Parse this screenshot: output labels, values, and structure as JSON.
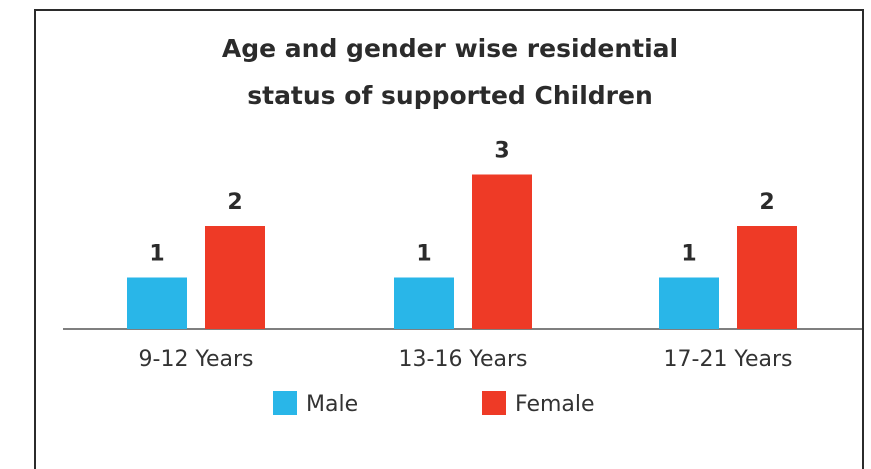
{
  "chart_data": {
    "type": "bar",
    "title_lines": [
      "Age and gender wise residential",
      "status of supported Children"
    ],
    "categories": [
      "9-12 Years",
      "13-16 Years",
      "17-21 Years"
    ],
    "series": [
      {
        "name": "Male",
        "color": "#29b6e8",
        "values": [
          1,
          1,
          1
        ]
      },
      {
        "name": "Female",
        "color": "#ee3a26",
        "values": [
          2,
          3,
          2
        ]
      }
    ],
    "ylim": [
      0,
      3
    ],
    "grid": false,
    "legend_position": "bottom-center",
    "xlabel": "",
    "ylabel": ""
  }
}
